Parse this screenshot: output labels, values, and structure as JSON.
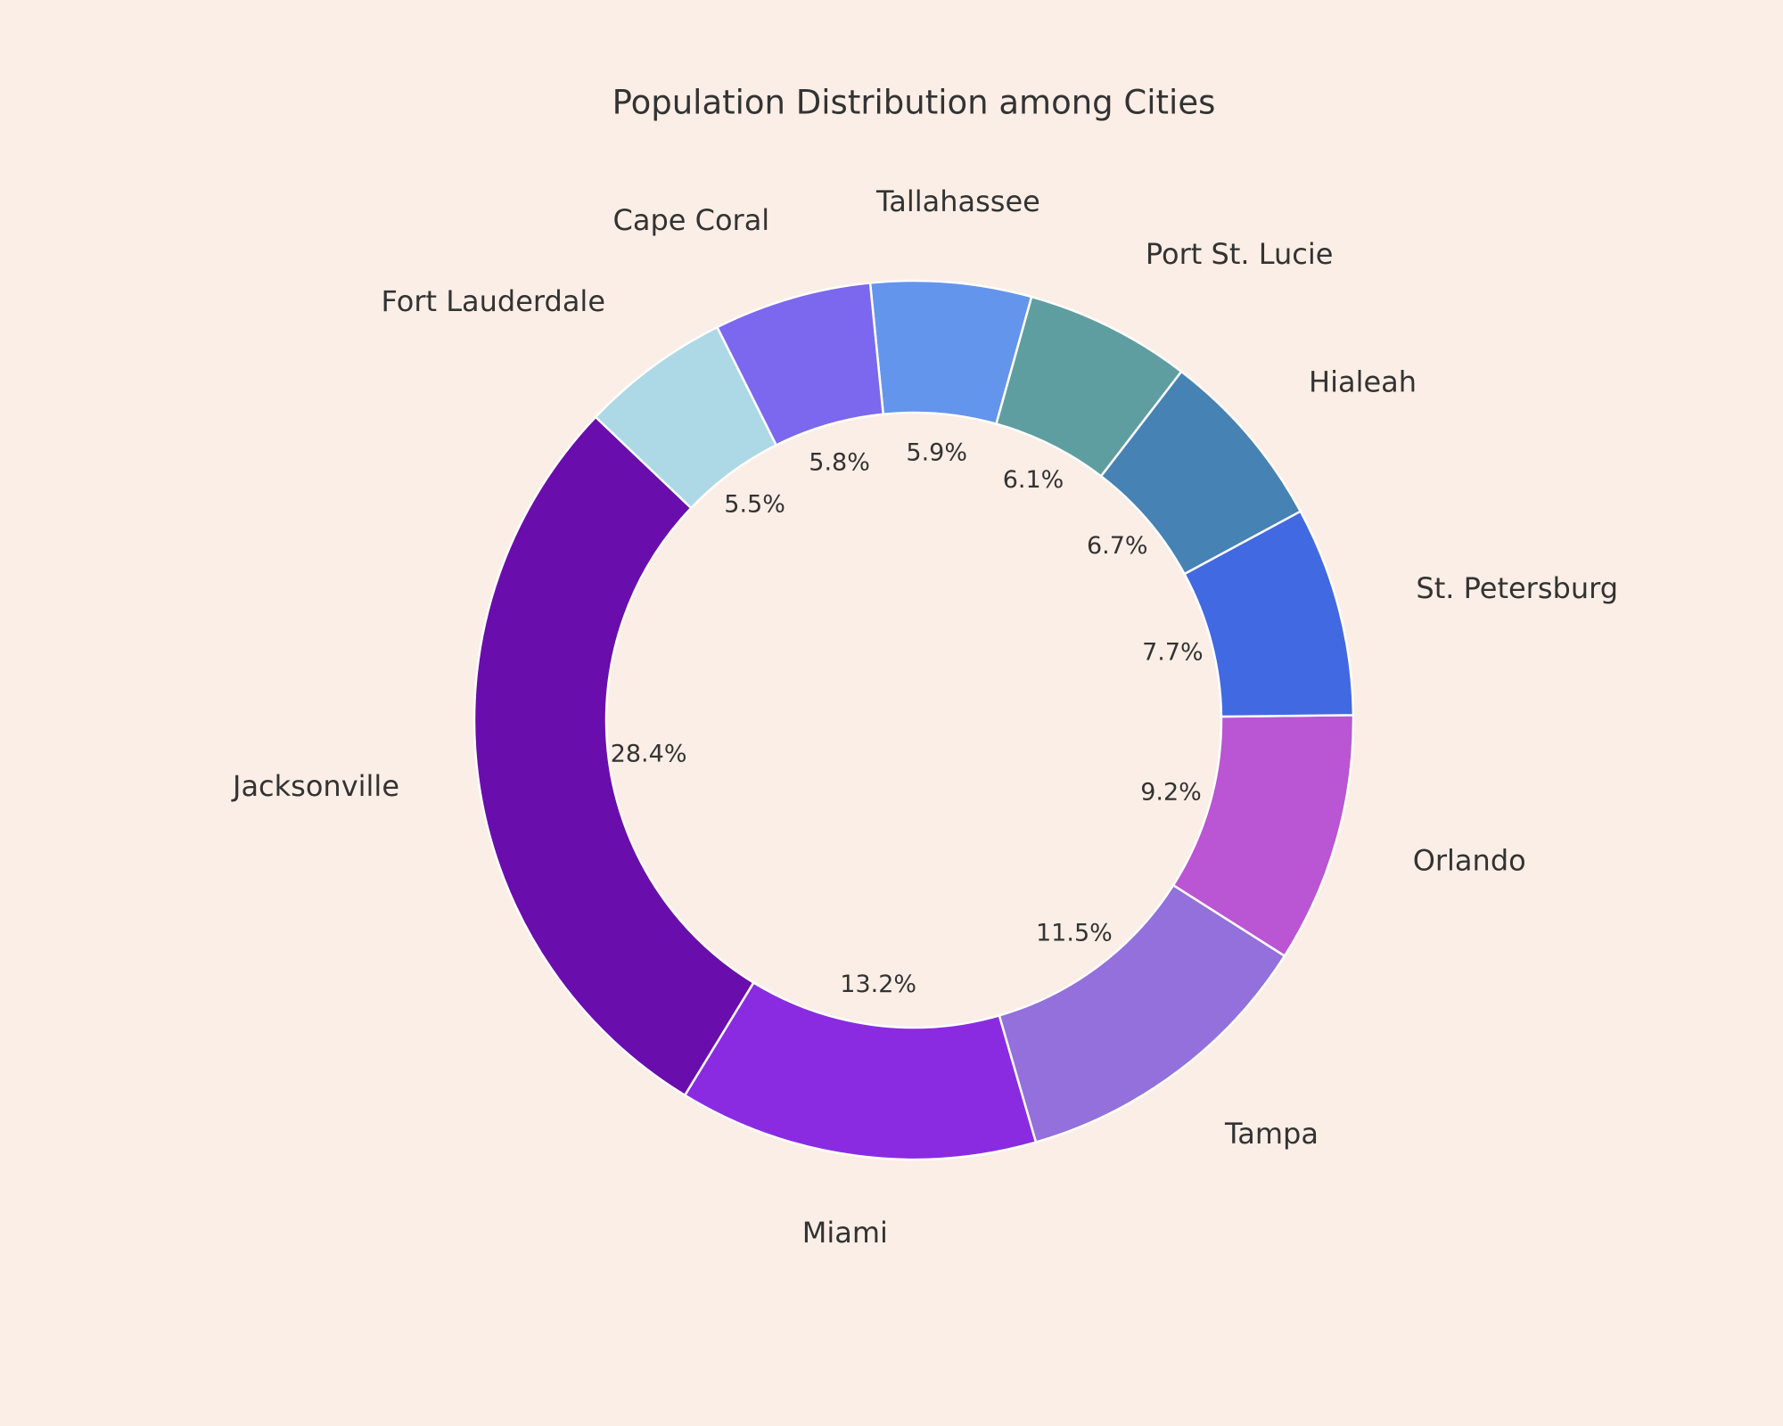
{
  "page": {
    "background": "#fbeee6"
  },
  "chart_data": {
    "type": "pie",
    "variant": "donut",
    "title": "Population Distribution among Cities",
    "start_angle_deg": 0,
    "direction": "clockwise",
    "slices": [
      {
        "label": "Jacksonville",
        "value": 28.4,
        "pct_text": "28.4%",
        "color": "#6a0dad"
      },
      {
        "label": "Miami",
        "value": 13.2,
        "pct_text": "13.2%",
        "color": "#8a2be2"
      },
      {
        "label": "Tampa",
        "value": 11.5,
        "pct_text": "11.5%",
        "color": "#9370db"
      },
      {
        "label": "Orlando",
        "value": 9.2,
        "pct_text": "9.2%",
        "color": "#ba55d3"
      },
      {
        "label": "St. Petersburg",
        "value": 7.7,
        "pct_text": "7.7%",
        "color": "#4169e1"
      },
      {
        "label": "Hialeah",
        "value": 6.7,
        "pct_text": "6.7%",
        "color": "#4682b4"
      },
      {
        "label": "Port St. Lucie",
        "value": 6.1,
        "pct_text": "6.1%",
        "color": "#5f9ea0"
      },
      {
        "label": "Tallahassee",
        "value": 5.9,
        "pct_text": "5.9%",
        "color": "#6495ed"
      },
      {
        "label": "Cape Coral",
        "value": 5.8,
        "pct_text": "5.8%",
        "color": "#7b68ee"
      },
      {
        "label": "Fort Lauderdale",
        "value": 5.5,
        "pct_text": "5.5%",
        "color": "#add8e6"
      }
    ]
  }
}
